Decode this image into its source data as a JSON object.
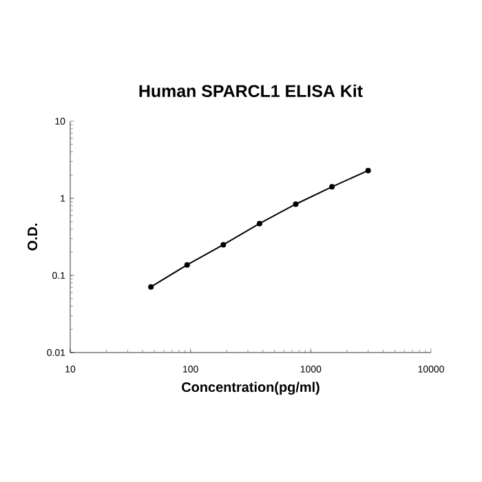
{
  "chart_data": {
    "type": "line",
    "title": "Human SPARCL1 ELISA Kit",
    "xlabel": "Concentration(pg/ml)",
    "ylabel": "O.D.",
    "log": "xy",
    "x": [
      46.875,
      93.75,
      187.5,
      375,
      750,
      1500,
      3000
    ],
    "series": [
      {
        "color": "#000000",
        "values": [
          0.071,
          0.137,
          0.25,
          0.47,
          0.84,
          1.41,
          2.29
        ]
      }
    ],
    "xlim": [
      10,
      10000
    ],
    "xticks": [
      10,
      100,
      1000,
      10000
    ],
    "ylim": [
      0.01,
      10
    ],
    "yticks": [
      0.01,
      0.1,
      1,
      10
    ],
    "marker": "circle",
    "line_style": "solid",
    "grid": false
  }
}
